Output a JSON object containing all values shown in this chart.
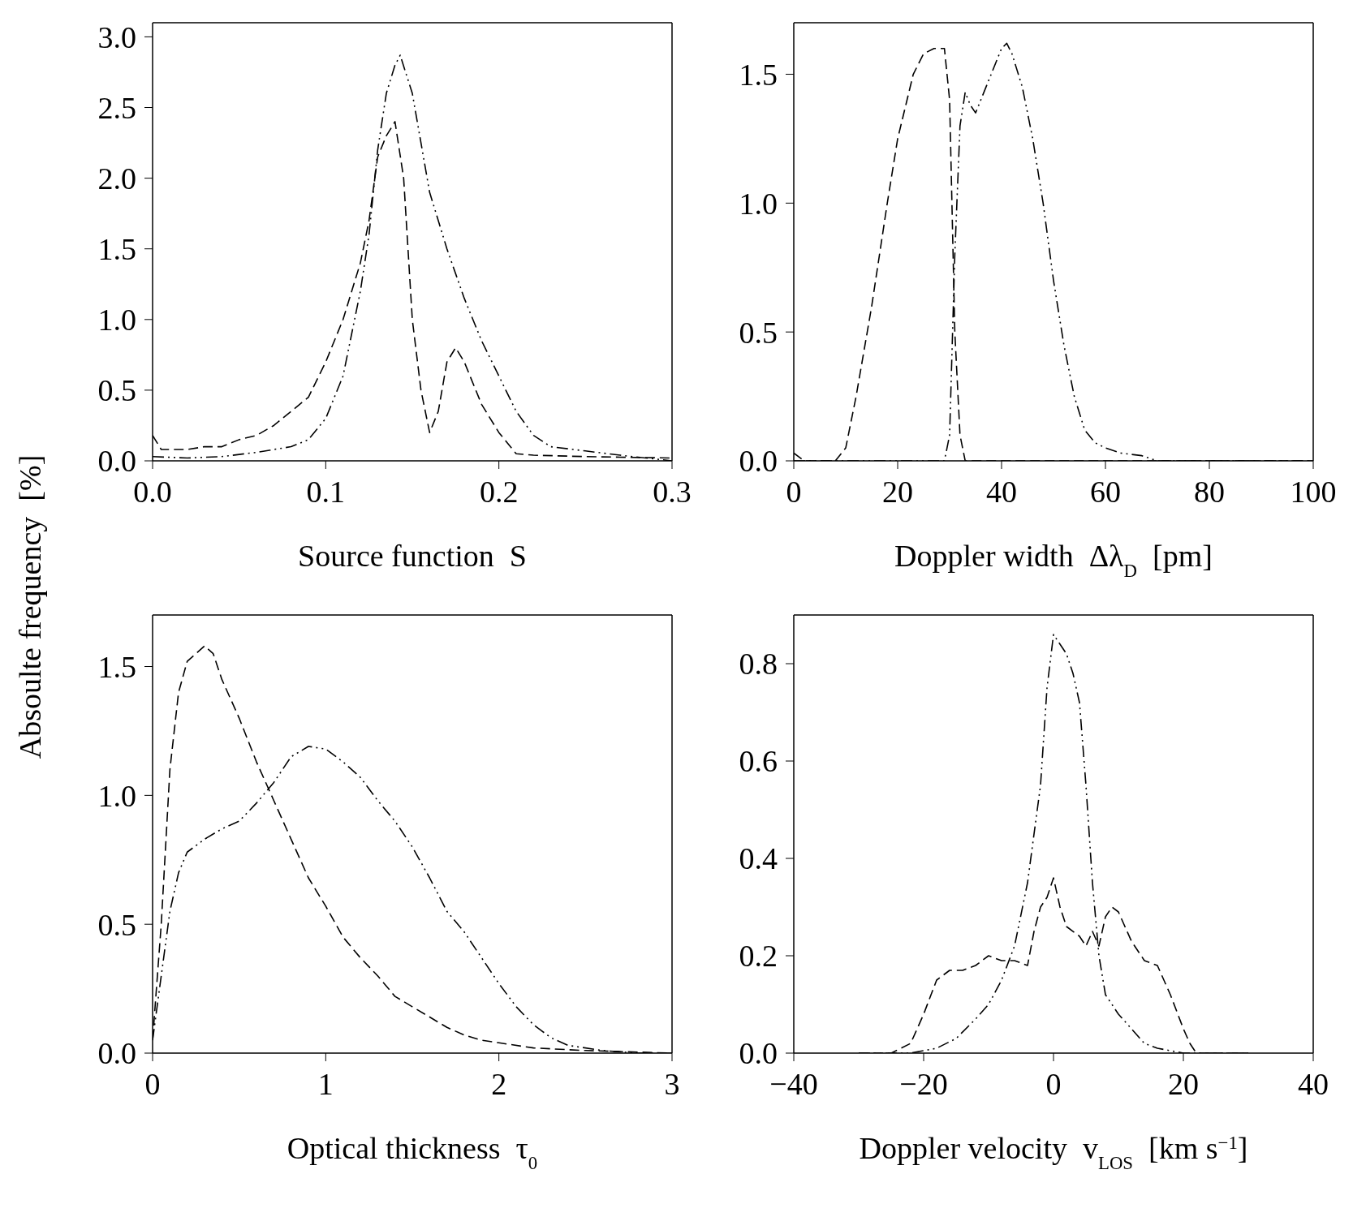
{
  "chart_data": [
    {
      "type": "line",
      "xlabel": "Source function  S",
      "ylabel": "Absoulte frequency  [%]",
      "xlim": [
        0,
        0.3
      ],
      "xticks": [
        {
          "value": 0,
          "label": "0.0"
        },
        0.1,
        0.2,
        0.3
      ],
      "ylim": [
        0,
        3.1
      ],
      "yticks": [
        {
          "value": 0,
          "label": "0.0"
        },
        0.5,
        {
          "value": 1,
          "label": "1.0"
        },
        1.5,
        {
          "value": 2,
          "label": "2.0"
        },
        2.5,
        {
          "value": 3,
          "label": "3.0"
        }
      ],
      "marker": "none",
      "series": [
        {
          "color": "#000000",
          "line_style": "dashed",
          "x": [
            0,
            0.005,
            0.01,
            0.02,
            0.03,
            0.04,
            0.05,
            0.06,
            0.07,
            0.08,
            0.09,
            0.1,
            0.11,
            0.12,
            0.125,
            0.13,
            0.135,
            0.14,
            0.145,
            0.15,
            0.155,
            0.16,
            0.165,
            0.17,
            0.175,
            0.18,
            0.19,
            0.2,
            0.21,
            0.22,
            0.25,
            0.3
          ],
          "values": [
            0.18,
            0.08,
            0.08,
            0.08,
            0.1,
            0.1,
            0.15,
            0.18,
            0.25,
            0.35,
            0.45,
            0.7,
            1.0,
            1.4,
            1.7,
            2.15,
            2.3,
            2.4,
            2.0,
            1.0,
            0.5,
            0.2,
            0.35,
            0.7,
            0.8,
            0.7,
            0.4,
            0.2,
            0.05,
            0.04,
            0.03,
            0.02
          ]
        },
        {
          "color": "#000000",
          "line_style": "dotted",
          "x": [
            0,
            0.02,
            0.04,
            0.06,
            0.08,
            0.09,
            0.1,
            0.11,
            0.12,
            0.125,
            0.13,
            0.135,
            0.14,
            0.143,
            0.15,
            0.16,
            0.17,
            0.18,
            0.19,
            0.2,
            0.21,
            0.22,
            0.23,
            0.25,
            0.27,
            0.3
          ],
          "values": [
            0.03,
            0.02,
            0.03,
            0.06,
            0.1,
            0.15,
            0.3,
            0.6,
            1.2,
            1.6,
            2.2,
            2.6,
            2.8,
            2.87,
            2.6,
            1.9,
            1.5,
            1.15,
            0.85,
            0.6,
            0.35,
            0.18,
            0.1,
            0.07,
            0.04,
            0.0
          ]
        }
      ]
    },
    {
      "type": "line",
      "xlabel": "Doppler width  Δλ$_{D}$  [pm]",
      "xlim": [
        0,
        100
      ],
      "xticks": [
        0,
        20,
        40,
        60,
        80,
        100
      ],
      "ylim": [
        0,
        1.7
      ],
      "yticks": [
        {
          "value": 0,
          "label": "0.0"
        },
        0.5,
        {
          "value": 1,
          "label": "1.0"
        },
        1.5
      ],
      "marker": "none",
      "series": [
        {
          "color": "#000000",
          "line_style": "dashed",
          "x": [
            0,
            2,
            5,
            8,
            10,
            12,
            15,
            18,
            20,
            23,
            25,
            27,
            29,
            30,
            31,
            32,
            33,
            40,
            100
          ],
          "values": [
            0.03,
            0,
            0,
            0,
            0.05,
            0.25,
            0.6,
            1.0,
            1.25,
            1.5,
            1.58,
            1.6,
            1.6,
            1.4,
            0.5,
            0.1,
            0,
            0,
            0
          ]
        },
        {
          "color": "#000000",
          "line_style": "dotted",
          "x": [
            0,
            29,
            30,
            31,
            32,
            33,
            34,
            35,
            36,
            38,
            40,
            41,
            42,
            44,
            46,
            48,
            50,
            52,
            54,
            56,
            58,
            60,
            63,
            67,
            70,
            100
          ],
          "values": [
            0,
            0,
            0.1,
            0.8,
            1.3,
            1.43,
            1.38,
            1.35,
            1.4,
            1.5,
            1.6,
            1.62,
            1.58,
            1.45,
            1.25,
            1.0,
            0.7,
            0.45,
            0.25,
            0.12,
            0.07,
            0.05,
            0.03,
            0.02,
            0,
            0
          ]
        }
      ]
    },
    {
      "type": "line",
      "xlabel": "Optical thickness  τ$_{0}$",
      "xlim": [
        0,
        3
      ],
      "xticks": [
        0,
        1,
        2,
        3
      ],
      "ylim": [
        0,
        1.7
      ],
      "yticks": [
        {
          "value": 0,
          "label": "0.0"
        },
        0.5,
        {
          "value": 1,
          "label": "1.0"
        },
        1.5
      ],
      "marker": "none",
      "series": [
        {
          "color": "#000000",
          "line_style": "dashed",
          "x": [
            0,
            0.05,
            0.1,
            0.15,
            0.2,
            0.3,
            0.35,
            0.4,
            0.5,
            0.6,
            0.7,
            0.8,
            0.9,
            1.0,
            1.1,
            1.2,
            1.3,
            1.4,
            1.5,
            1.6,
            1.7,
            1.8,
            1.9,
            2.0,
            2.2,
            2.5,
            3.0
          ],
          "values": [
            0.05,
            0.5,
            1.1,
            1.4,
            1.52,
            1.58,
            1.55,
            1.45,
            1.3,
            1.13,
            0.98,
            0.83,
            0.68,
            0.57,
            0.45,
            0.37,
            0.3,
            0.22,
            0.18,
            0.14,
            0.1,
            0.07,
            0.05,
            0.04,
            0.02,
            0.01,
            0
          ]
        },
        {
          "color": "#000000",
          "line_style": "dotted",
          "x": [
            0,
            0.05,
            0.1,
            0.15,
            0.2,
            0.3,
            0.4,
            0.5,
            0.6,
            0.7,
            0.8,
            0.9,
            1.0,
            1.1,
            1.2,
            1.3,
            1.4,
            1.5,
            1.6,
            1.7,
            1.8,
            1.9,
            2.0,
            2.1,
            2.2,
            2.3,
            2.4,
            2.6,
            2.8,
            3.0
          ],
          "values": [
            0.05,
            0.3,
            0.55,
            0.7,
            0.78,
            0.83,
            0.87,
            0.9,
            0.97,
            1.05,
            1.15,
            1.19,
            1.18,
            1.13,
            1.07,
            0.98,
            0.9,
            0.8,
            0.68,
            0.55,
            0.47,
            0.37,
            0.27,
            0.18,
            0.11,
            0.06,
            0.03,
            0.01,
            0,
            0
          ]
        }
      ]
    },
    {
      "type": "line",
      "xlabel": "Doppler velocity  v$_{LOS}$  [km s$^{−1}$]",
      "xlim": [
        -40,
        40
      ],
      "xticks": [
        {
          "value": -40,
          "label": "−40"
        },
        {
          "value": -20,
          "label": "−20"
        },
        0,
        20,
        40
      ],
      "ylim": [
        0,
        0.9
      ],
      "yticks": [
        {
          "value": 0,
          "label": "0.0"
        },
        0.2,
        0.4,
        0.6,
        0.8
      ],
      "marker": "none",
      "series": [
        {
          "color": "#000000",
          "line_style": "dashed",
          "x": [
            -30,
            -25,
            -22,
            -20,
            -18,
            -16,
            -14,
            -12,
            -10,
            -8,
            -6,
            -4,
            -3,
            -2,
            -1,
            0,
            1,
            2,
            4,
            5,
            6,
            7,
            8,
            9,
            10,
            12,
            14,
            16,
            18,
            20,
            21,
            22,
            30
          ],
          "values": [
            0,
            0,
            0.02,
            0.08,
            0.15,
            0.17,
            0.17,
            0.18,
            0.2,
            0.19,
            0.19,
            0.18,
            0.25,
            0.3,
            0.32,
            0.36,
            0.3,
            0.26,
            0.24,
            0.22,
            0.25,
            0.22,
            0.28,
            0.3,
            0.29,
            0.23,
            0.19,
            0.18,
            0.12,
            0.05,
            0.02,
            0,
            0
          ]
        },
        {
          "color": "#000000",
          "line_style": "dotted",
          "x": [
            -30,
            -22,
            -18,
            -15,
            -12,
            -10,
            -8,
            -6,
            -4,
            -2,
            -1,
            0,
            1,
            2,
            3,
            4,
            5,
            6,
            7,
            8,
            10,
            12,
            14,
            16,
            20,
            30
          ],
          "values": [
            0,
            0,
            0.01,
            0.03,
            0.07,
            0.1,
            0.15,
            0.22,
            0.35,
            0.55,
            0.75,
            0.86,
            0.84,
            0.82,
            0.78,
            0.72,
            0.55,
            0.35,
            0.2,
            0.12,
            0.08,
            0.05,
            0.02,
            0.01,
            0,
            0
          ]
        }
      ]
    }
  ]
}
